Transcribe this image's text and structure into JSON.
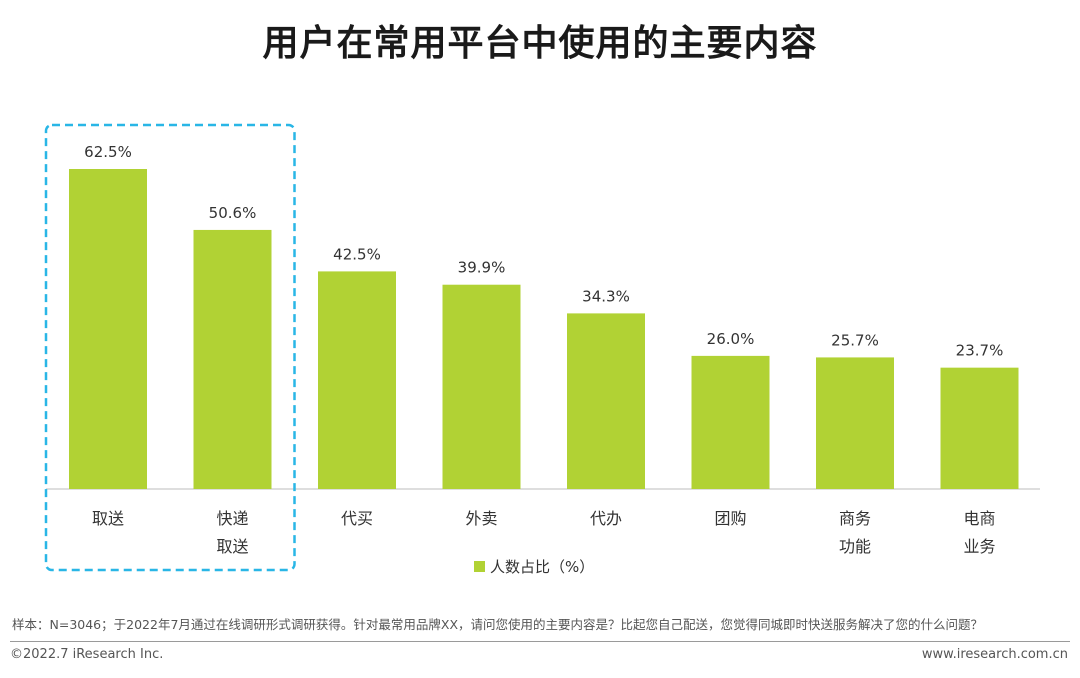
{
  "chart_data": {
    "type": "bar",
    "title": "用户在常用平台中使用的主要内容",
    "categories": [
      [
        "取送"
      ],
      [
        "快递",
        "取送"
      ],
      [
        "代买"
      ],
      [
        "外卖"
      ],
      [
        "代办"
      ],
      [
        "团购"
      ],
      [
        "商务",
        "功能"
      ],
      [
        "电商",
        "业务"
      ]
    ],
    "values": [
      62.5,
      50.6,
      42.5,
      39.9,
      34.3,
      26.0,
      25.7,
      23.7
    ],
    "value_labels": [
      "62.5%",
      "50.6%",
      "42.5%",
      "39.9%",
      "34.3%",
      "26.0%",
      "25.7%",
      "23.7%"
    ],
    "ylim": [
      0,
      62.5
    ],
    "legend": {
      "label": "人数占比（%）",
      "position": "bottom"
    },
    "grid": false,
    "highlight": {
      "categories": [
        0,
        1
      ],
      "style": "dashed-box"
    }
  },
  "colors": {
    "bar": "#b1d234",
    "highlight": "#29b6e6",
    "axis": "#bdbdbd"
  },
  "footer": {
    "note": "样本：N=3046；于2022年7月通过在线调研形式调研获得。针对最常用品牌XX，请问您使用的主要内容是？比起您自己配送，您觉得同城即时快送服务解决了您的什么问题？",
    "copyright": "©2022.7 iResearch Inc.",
    "website": "www.iresearch.com.cn"
  }
}
